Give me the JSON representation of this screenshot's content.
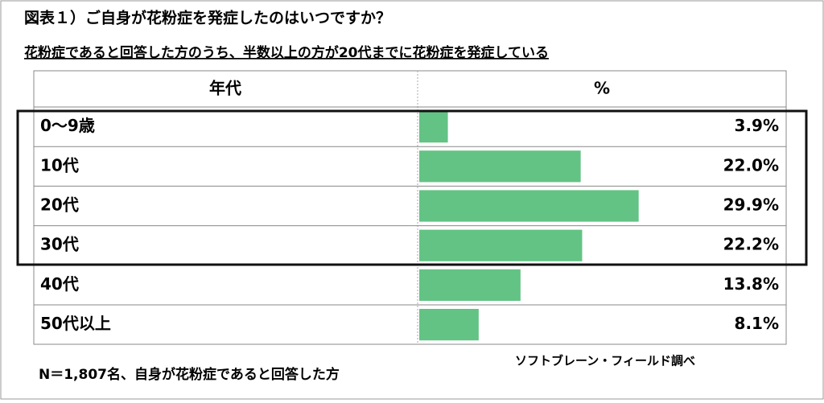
{
  "chart_data": {
    "type": "bar",
    "orientation": "horizontal",
    "title": "図表１）ご自身が花粉症を発症したのはいつですか？",
    "subtitle": "花粉症であると回答した方のうち、半数以上の方が20代までに花粉症を発症している",
    "columns": [
      "年代",
      "%"
    ],
    "categories": [
      "0～9歳",
      "10代",
      "20代",
      "30代",
      "40代",
      "50代以上"
    ],
    "values": [
      3.9,
      22.0,
      29.9,
      22.2,
      13.8,
      8.1
    ],
    "value_labels": [
      "3.9%",
      "22.0%",
      "29.9%",
      "22.2%",
      "13.8%",
      "8.1%"
    ],
    "color": "#63c384",
    "xlim": [
      0,
      50
    ],
    "note": "N＝1,807名、自身が花粉症であると回答した方",
    "source": "ソフトブレーン・フィールド調べ"
  }
}
